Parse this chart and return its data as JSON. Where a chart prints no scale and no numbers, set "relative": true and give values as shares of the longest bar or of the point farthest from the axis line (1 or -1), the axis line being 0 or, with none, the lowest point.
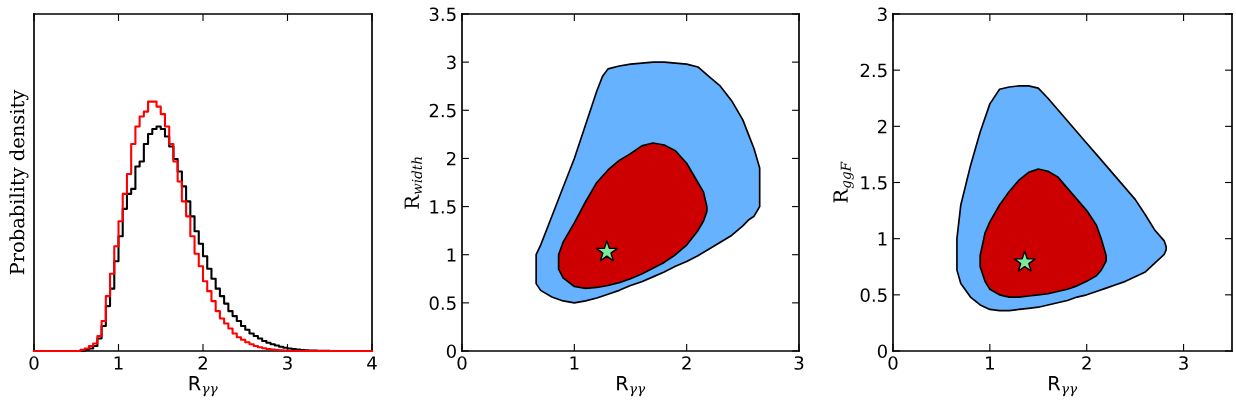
{
  "chart_data": [
    {
      "type": "step",
      "relative": true,
      "xlabel": "R$_{γγ}$",
      "ylabel": "Probability density",
      "xlim": [
        0,
        4
      ],
      "xticks": [
        0,
        1,
        2,
        3,
        4
      ],
      "grid": false,
      "legend": false,
      "marker": "none",
      "x": [
        0,
        0.5,
        0.55,
        0.6,
        0.65,
        0.7,
        0.75,
        0.8,
        0.85,
        0.9,
        0.95,
        1.0,
        1.05,
        1.1,
        1.15,
        1.2,
        1.25,
        1.3,
        1.35,
        1.4,
        1.45,
        1.5,
        1.55,
        1.6,
        1.65,
        1.7,
        1.75,
        1.8,
        1.85,
        1.9,
        1.95,
        2.0,
        2.05,
        2.1,
        2.15,
        2.2,
        2.25,
        2.3,
        2.35,
        2.4,
        2.45,
        2.5,
        2.55,
        2.6,
        2.65,
        2.7,
        2.75,
        2.8,
        2.85,
        2.9,
        2.95,
        3.0,
        3.05,
        3.1,
        3.15,
        3.2,
        3.25,
        3.3,
        3.35,
        3.4,
        3.45,
        3.5,
        4
      ],
      "series": [
        {
          "color": "#000000",
          "values": [
            0,
            0,
            0,
            0.005,
            0.01,
            0.02,
            0.05,
            0.1,
            0.18,
            0.25,
            0.36,
            0.46,
            0.57,
            0.63,
            0.65,
            0.74,
            0.76,
            0.83,
            0.87,
            0.89,
            0.9,
            0.89,
            0.86,
            0.82,
            0.77,
            0.72,
            0.66,
            0.6,
            0.54,
            0.48,
            0.43,
            0.38,
            0.33,
            0.29,
            0.25,
            0.22,
            0.19,
            0.16,
            0.14,
            0.12,
            0.1,
            0.085,
            0.07,
            0.06,
            0.05,
            0.04,
            0.033,
            0.027,
            0.022,
            0.017,
            0.013,
            0.01,
            0.008,
            0.006,
            0.004,
            0.003,
            0.002,
            0.0015,
            0.001,
            0.001,
            0.0005,
            0,
            0
          ]
        },
        {
          "color": "#ff0000",
          "values": [
            0,
            0,
            0.005,
            0.01,
            0.02,
            0.03,
            0.06,
            0.12,
            0.22,
            0.31,
            0.42,
            0.52,
            0.63,
            0.71,
            0.83,
            0.9,
            0.94,
            0.96,
            1.0,
            1.0,
            0.98,
            0.95,
            0.9,
            0.83,
            0.76,
            0.68,
            0.6,
            0.54,
            0.46,
            0.39,
            0.34,
            0.28,
            0.24,
            0.2,
            0.16,
            0.13,
            0.11,
            0.09,
            0.07,
            0.055,
            0.045,
            0.035,
            0.027,
            0.02,
            0.015,
            0.011,
            0.008,
            0.006,
            0.004,
            0.003,
            0.002,
            0.001,
            0.001,
            0,
            0,
            0,
            0,
            0,
            0,
            0,
            0,
            0,
            0
          ]
        }
      ]
    },
    {
      "type": "area",
      "xlabel": "R$_{γγ}$",
      "ylabel": "R$_{width}$",
      "xlim": [
        0,
        3
      ],
      "ylim": [
        0,
        3.5
      ],
      "xticks": [
        0,
        1,
        2,
        3
      ],
      "yticks": [
        0,
        0.5,
        1,
        1.5,
        2,
        2.5,
        3,
        3.5
      ],
      "grid": false,
      "legend": false,
      "series": [
        {
          "color": "#66b2ff",
          "x": [
            0.66,
            0.7,
            0.8,
            0.9,
            1.0,
            1.1,
            1.2,
            1.3,
            1.4,
            1.5,
            1.6,
            1.7,
            1.8,
            1.9,
            2.0,
            2.1,
            2.2,
            2.3,
            2.4,
            2.5,
            2.55,
            2.6,
            2.65,
            2.65,
            2.6,
            2.55,
            2.5,
            2.4,
            2.3,
            2.2,
            2.1,
            2.0,
            1.9,
            1.8,
            1.7,
            1.6,
            1.5,
            1.4,
            1.3,
            1.25,
            1.2,
            1.1,
            1.0,
            0.9,
            0.8,
            0.7,
            0.66
          ],
          "values": [
            0.7,
            0.63,
            0.56,
            0.52,
            0.5,
            0.52,
            0.55,
            0.59,
            0.63,
            0.68,
            0.72,
            0.77,
            0.82,
            0.88,
            0.93,
            0.99,
            1.06,
            1.13,
            1.2,
            1.3,
            1.36,
            1.4,
            1.5,
            1.9,
            2.1,
            2.25,
            2.4,
            2.6,
            2.75,
            2.85,
            2.95,
            2.98,
            2.99,
            3.0,
            3.0,
            2.99,
            2.98,
            2.96,
            2.93,
            2.85,
            2.7,
            2.35,
            2.0,
            1.7,
            1.4,
            1.1,
            1.0
          ]
        },
        {
          "color": "#cc0000",
          "x": [
            0.86,
            0.9,
            1.0,
            1.1,
            1.2,
            1.3,
            1.4,
            1.5,
            1.6,
            1.7,
            1.8,
            1.9,
            2.0,
            2.1,
            2.15,
            2.18,
            2.18,
            2.15,
            2.1,
            2.0,
            1.9,
            1.8,
            1.7,
            1.6,
            1.5,
            1.4,
            1.3,
            1.2,
            1.1,
            1.0,
            0.9,
            0.86
          ],
          "values": [
            0.85,
            0.76,
            0.67,
            0.65,
            0.66,
            0.68,
            0.71,
            0.75,
            0.8,
            0.86,
            0.92,
            1.0,
            1.1,
            1.25,
            1.35,
            1.45,
            1.5,
            1.65,
            1.75,
            1.95,
            2.08,
            2.14,
            2.16,
            2.13,
            2.05,
            1.98,
            1.88,
            1.75,
            1.55,
            1.33,
            1.13,
            1.0
          ]
        },
        {
          "type": "scatter",
          "marker": "star",
          "color": "#7fe89a",
          "x": [
            1.29
          ],
          "values": [
            1.03
          ]
        }
      ]
    },
    {
      "type": "area",
      "xlabel": "R$_{γγ}$",
      "ylabel": "R$_{ggF}$",
      "xlim": [
        0,
        3.5
      ],
      "ylim": [
        0,
        3
      ],
      "xticks": [
        0,
        1,
        2,
        3
      ],
      "yticks": [
        0,
        0.5,
        1,
        1.5,
        2,
        2.5,
        3
      ],
      "grid": false,
      "legend": false,
      "series": [
        {
          "color": "#66b2ff",
          "x": [
            0.66,
            0.7,
            0.8,
            0.9,
            1.0,
            1.1,
            1.2,
            1.3,
            1.4,
            1.5,
            1.6,
            1.7,
            1.8,
            1.9,
            2.0,
            2.1,
            2.2,
            2.3,
            2.4,
            2.5,
            2.6,
            2.7,
            2.8,
            2.82,
            2.82,
            2.8,
            2.7,
            2.6,
            2.5,
            2.4,
            2.3,
            2.2,
            2.1,
            2.0,
            1.9,
            1.8,
            1.7,
            1.6,
            1.5,
            1.4,
            1.3,
            1.2,
            1.1,
            1.0,
            0.9,
            0.8,
            0.7,
            0.66
          ],
          "values": [
            0.72,
            0.6,
            0.48,
            0.41,
            0.37,
            0.36,
            0.36,
            0.37,
            0.38,
            0.39,
            0.41,
            0.43,
            0.45,
            0.48,
            0.5,
            0.53,
            0.56,
            0.59,
            0.62,
            0.66,
            0.7,
            0.78,
            0.86,
            0.9,
            0.93,
            0.98,
            1.08,
            1.22,
            1.35,
            1.45,
            1.55,
            1.65,
            1.75,
            1.85,
            1.95,
            2.05,
            2.15,
            2.25,
            2.34,
            2.36,
            2.36,
            2.35,
            2.33,
            2.2,
            1.95,
            1.65,
            1.3,
            1.0
          ]
        },
        {
          "color": "#cc0000",
          "x": [
            0.9,
            0.95,
            1.0,
            1.1,
            1.2,
            1.3,
            1.4,
            1.5,
            1.6,
            1.7,
            1.8,
            1.9,
            2.0,
            2.1,
            2.15,
            2.2,
            2.2,
            2.15,
            2.1,
            2.0,
            1.9,
            1.8,
            1.7,
            1.6,
            1.5,
            1.4,
            1.3,
            1.2,
            1.1,
            1.0,
            0.95,
            0.9
          ],
          "values": [
            0.75,
            0.62,
            0.55,
            0.5,
            0.48,
            0.48,
            0.49,
            0.5,
            0.51,
            0.53,
            0.55,
            0.58,
            0.62,
            0.67,
            0.72,
            0.8,
            0.85,
            1.0,
            1.12,
            1.25,
            1.35,
            1.45,
            1.55,
            1.6,
            1.62,
            1.59,
            1.52,
            1.42,
            1.3,
            1.15,
            1.05,
            0.85
          ]
        },
        {
          "type": "scatter",
          "marker": "star",
          "color": "#7fe89a",
          "x": [
            1.36
          ],
          "values": [
            0.79
          ]
        }
      ]
    }
  ]
}
